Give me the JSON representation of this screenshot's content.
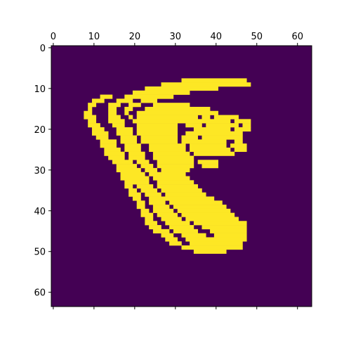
{
  "chart_data": {
    "type": "heatmap",
    "title": "",
    "xlabel": "",
    "ylabel": "",
    "x_axis_position": "top",
    "xlim": [
      0,
      64
    ],
    "ylim": [
      0,
      64
    ],
    "y_inverted": true,
    "x_ticks": [
      0,
      10,
      20,
      30,
      40,
      50,
      60
    ],
    "y_ticks": [
      0,
      10,
      20,
      30,
      40,
      50,
      60
    ],
    "x_tick_labels": [
      "0",
      "10",
      "20",
      "30",
      "40",
      "50",
      "60"
    ],
    "y_tick_labels": [
      "0",
      "10",
      "20",
      "30",
      "40",
      "50",
      "60"
    ],
    "grid": false,
    "colormap": "viridis",
    "colors": {
      "low": "#440154",
      "high": "#fde725"
    },
    "value_range": [
      0,
      1
    ],
    "width": 64,
    "height": 64,
    "on_runs": [
      {
        "row": 8,
        "runs": [
          [
            32,
            47
          ]
        ]
      },
      {
        "row": 9,
        "runs": [
          [
            27,
            48
          ]
        ]
      },
      {
        "row": 10,
        "runs": [
          [
            23,
            40
          ]
        ]
      },
      {
        "row": 11,
        "runs": [
          [
            20,
            33
          ]
        ]
      },
      {
        "row": 12,
        "runs": [
          [
            12,
            14
          ],
          [
            18,
            29
          ]
        ]
      },
      {
        "row": 13,
        "runs": [
          [
            10,
            12
          ],
          [
            16,
            19
          ],
          [
            22,
            25
          ]
        ]
      },
      {
        "row": 14,
        "runs": [
          [
            9,
            10
          ],
          [
            14,
            16
          ],
          [
            19,
            21
          ],
          [
            25,
            33
          ]
        ]
      },
      {
        "row": 15,
        "runs": [
          [
            9,
            9
          ],
          [
            14,
            15
          ],
          [
            18,
            19
          ],
          [
            23,
            38
          ]
        ]
      },
      {
        "row": 16,
        "runs": [
          [
            8,
            9
          ],
          [
            14,
            15
          ],
          [
            18,
            18
          ],
          [
            21,
            40
          ]
        ]
      },
      {
        "row": 17,
        "runs": [
          [
            8,
            10
          ],
          [
            14,
            16
          ],
          [
            19,
            19
          ],
          [
            21,
            35
          ],
          [
            37,
            38
          ],
          [
            40,
            45
          ]
        ]
      },
      {
        "row": 18,
        "runs": [
          [
            9,
            10
          ],
          [
            14,
            17
          ],
          [
            20,
            43
          ],
          [
            45,
            48
          ]
        ]
      },
      {
        "row": 19,
        "runs": [
          [
            9,
            11
          ],
          [
            15,
            17
          ],
          [
            21,
            30
          ],
          [
            33,
            36
          ],
          [
            38,
            45
          ],
          [
            47,
            48
          ]
        ]
      },
      {
        "row": 20,
        "runs": [
          [
            10,
            12
          ],
          [
            16,
            19
          ],
          [
            21,
            30
          ],
          [
            35,
            43
          ],
          [
            45,
            48
          ]
        ]
      },
      {
        "row": 21,
        "runs": [
          [
            10,
            13
          ],
          [
            16,
            19
          ],
          [
            21,
            30
          ],
          [
            33,
            46
          ]
        ]
      },
      {
        "row": 22,
        "runs": [
          [
            11,
            13
          ],
          [
            17,
            20
          ],
          [
            22,
            30
          ],
          [
            32,
            35
          ],
          [
            37,
            46
          ]
        ]
      },
      {
        "row": 23,
        "runs": [
          [
            12,
            15
          ],
          [
            17,
            20
          ],
          [
            22,
            30
          ],
          [
            32,
            42
          ],
          [
            45,
            46
          ]
        ]
      },
      {
        "row": 24,
        "runs": [
          [
            12,
            15
          ],
          [
            18,
            21
          ],
          [
            24,
            32
          ],
          [
            34,
            42
          ],
          [
            44,
            47
          ]
        ]
      },
      {
        "row": 25,
        "runs": [
          [
            13,
            16
          ],
          [
            18,
            21
          ],
          [
            24,
            32
          ],
          [
            34,
            43
          ],
          [
            45,
            47
          ]
        ]
      },
      {
        "row": 26,
        "runs": [
          [
            13,
            17
          ],
          [
            19,
            22
          ],
          [
            25,
            33
          ],
          [
            35,
            44
          ]
        ]
      },
      {
        "row": 27,
        "runs": [
          [
            14,
            17
          ],
          [
            19,
            22
          ],
          [
            25,
            34
          ]
        ]
      },
      {
        "row": 28,
        "runs": [
          [
            15,
            19
          ],
          [
            21,
            23
          ],
          [
            26,
            34
          ],
          [
            36,
            40
          ]
        ]
      },
      {
        "row": 29,
        "runs": [
          [
            16,
            20
          ],
          [
            22,
            24
          ],
          [
            26,
            34
          ],
          [
            37,
            40
          ]
        ]
      },
      {
        "row": 30,
        "runs": [
          [
            16,
            21
          ],
          [
            23,
            25
          ],
          [
            27,
            33
          ]
        ]
      },
      {
        "row": 31,
        "runs": [
          [
            17,
            22
          ],
          [
            24,
            26
          ],
          [
            27,
            32
          ]
        ]
      },
      {
        "row": 32,
        "runs": [
          [
            17,
            23
          ],
          [
            25,
            33
          ]
        ]
      },
      {
        "row": 33,
        "runs": [
          [
            18,
            23
          ],
          [
            26,
            34
          ]
        ]
      },
      {
        "row": 34,
        "runs": [
          [
            18,
            19
          ],
          [
            21,
            24
          ],
          [
            26,
            35
          ]
        ]
      },
      {
        "row": 35,
        "runs": [
          [
            19,
            20
          ],
          [
            22,
            25
          ],
          [
            27,
            36
          ]
        ]
      },
      {
        "row": 36,
        "runs": [
          [
            19,
            21
          ],
          [
            23,
            26
          ],
          [
            28,
            37
          ]
        ]
      },
      {
        "row": 37,
        "runs": [
          [
            20,
            21
          ],
          [
            24,
            27
          ],
          [
            28,
            39
          ]
        ]
      },
      {
        "row": 38,
        "runs": [
          [
            21,
            22
          ],
          [
            24,
            27
          ],
          [
            29,
            41
          ]
        ]
      },
      {
        "row": 39,
        "runs": [
          [
            21,
            22
          ],
          [
            25,
            28
          ],
          [
            30,
            42
          ]
        ]
      },
      {
        "row": 40,
        "runs": [
          [
            22,
            23
          ],
          [
            25,
            29
          ],
          [
            31,
            43
          ]
        ]
      },
      {
        "row": 41,
        "runs": [
          [
            22,
            24
          ],
          [
            26,
            30
          ],
          [
            32,
            44
          ]
        ]
      },
      {
        "row": 42,
        "runs": [
          [
            23,
            24
          ],
          [
            27,
            31
          ],
          [
            33,
            45
          ]
        ]
      },
      {
        "row": 43,
        "runs": [
          [
            23,
            25
          ],
          [
            28,
            33
          ],
          [
            35,
            47
          ]
        ]
      },
      {
        "row": 44,
        "runs": [
          [
            24,
            26
          ],
          [
            29,
            34
          ],
          [
            37,
            47
          ]
        ]
      },
      {
        "row": 45,
        "runs": [
          [
            25,
            28
          ],
          [
            30,
            35
          ],
          [
            39,
            47
          ]
        ]
      },
      {
        "row": 46,
        "runs": [
          [
            27,
            29
          ],
          [
            32,
            37
          ],
          [
            40,
            47
          ]
        ]
      },
      {
        "row": 47,
        "runs": [
          [
            28,
            30
          ],
          [
            33,
            47
          ]
        ]
      },
      {
        "row": 48,
        "runs": [
          [
            29,
            31
          ],
          [
            34,
            46
          ]
        ]
      },
      {
        "row": 49,
        "runs": [
          [
            32,
            46
          ]
        ]
      },
      {
        "row": 50,
        "runs": [
          [
            35,
            42
          ]
        ]
      }
    ]
  }
}
